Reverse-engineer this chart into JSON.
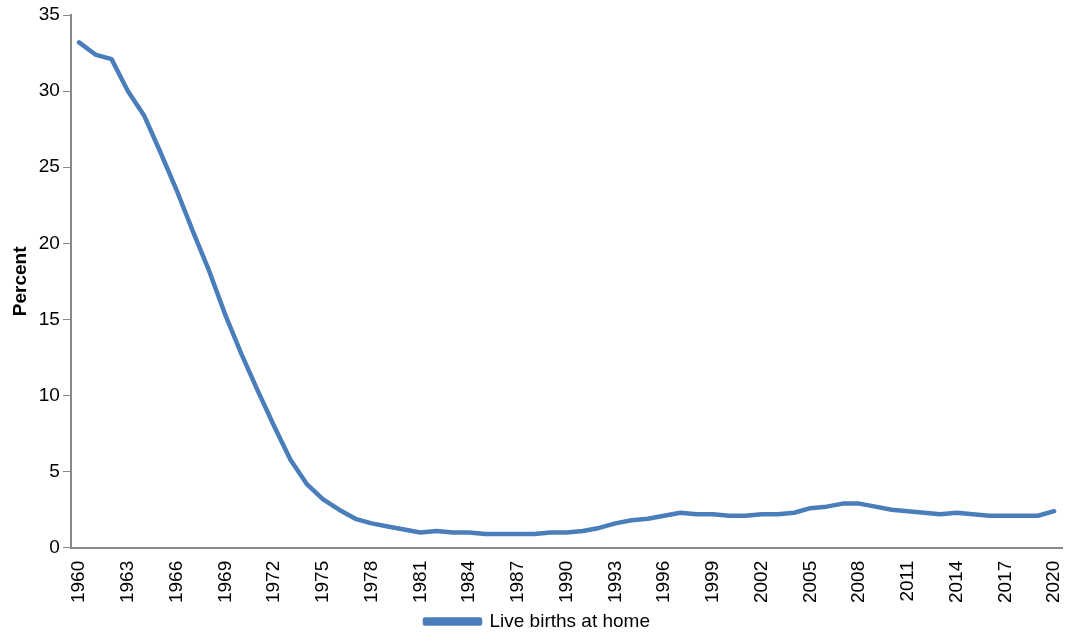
{
  "chart_data": {
    "type": "line",
    "ylabel": "Percent",
    "categories": [
      "1960",
      null,
      null,
      "1963",
      null,
      null,
      "1966",
      null,
      null,
      "1969",
      null,
      null,
      "1972",
      null,
      null,
      "1975",
      null,
      null,
      "1978",
      null,
      null,
      "1981",
      null,
      null,
      "1984",
      null,
      null,
      "1987",
      null,
      null,
      "1990",
      null,
      null,
      "1993",
      null,
      null,
      "1996",
      null,
      null,
      "1999",
      null,
      null,
      "2002",
      null,
      null,
      "2005",
      null,
      null,
      "2008",
      null,
      null,
      "2011",
      null,
      null,
      "2014",
      null,
      null,
      "2017",
      null,
      null,
      "2020"
    ],
    "series": [
      {
        "name": "Live births at home",
        "color": "#4a7ebb",
        "values": [
          33.2,
          32.4,
          32.1,
          30.0,
          28.4,
          26.0,
          23.5,
          20.8,
          18.2,
          15.3,
          12.7,
          10.3,
          8.0,
          5.8,
          4.2,
          3.2,
          2.5,
          1.9,
          1.6,
          1.4,
          1.2,
          1.0,
          1.1,
          1.0,
          1.0,
          0.9,
          0.9,
          0.9,
          0.9,
          1.0,
          1.0,
          1.1,
          1.3,
          1.6,
          1.8,
          1.9,
          2.1,
          2.3,
          2.2,
          2.2,
          2.1,
          2.1,
          2.2,
          2.2,
          2.3,
          2.6,
          2.7,
          2.9,
          2.9,
          2.7,
          2.5,
          2.4,
          2.3,
          2.2,
          2.3,
          2.2,
          2.1,
          2.1,
          2.1,
          2.1,
          2.4
        ]
      }
    ],
    "ylim": [
      0,
      35
    ],
    "yticks": [
      0,
      5,
      10,
      15,
      20,
      25,
      30,
      35
    ],
    "grid": false,
    "legend": "bottom",
    "marker": "none",
    "line_style": "solid"
  }
}
